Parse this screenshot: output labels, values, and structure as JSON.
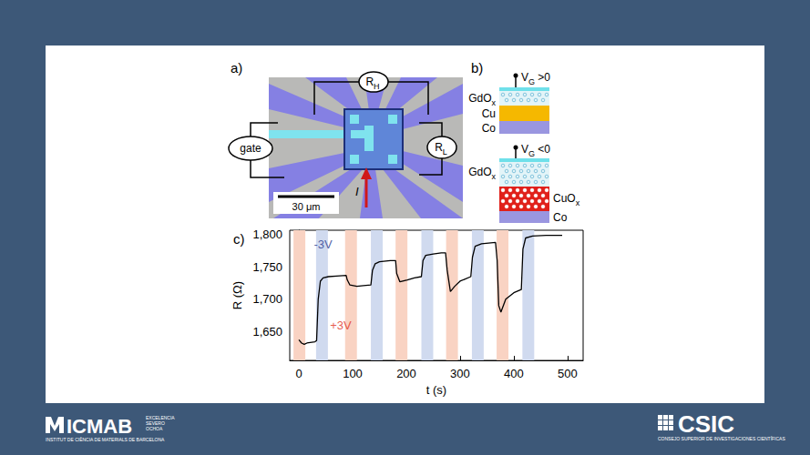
{
  "panels": {
    "a": {
      "letter": "a)",
      "gate": "gate",
      "r_h": [
        {
          "t": "R"
        },
        {
          "t": "H",
          "sub": true
        }
      ],
      "r_l": [
        {
          "t": "R"
        },
        {
          "t": "L",
          "sub": true
        }
      ],
      "scale_bar": "30 μm",
      "current": "I"
    },
    "b": {
      "letter": "b)",
      "top_gate": [
        {
          "t": "V"
        },
        {
          "t": "G",
          "sub": true
        },
        {
          "t": " >0"
        }
      ],
      "top_layers": [
        [
          {
            "t": "GdO"
          },
          {
            "t": "x",
            "sub": true
          }
        ],
        "Cu",
        "Co"
      ],
      "bottom_gate": [
        {
          "t": "V"
        },
        {
          "t": "G",
          "sub": true
        },
        {
          "t": " <0"
        }
      ],
      "bottom_layers": [
        [
          {
            "t": "GdO"
          },
          {
            "t": "x",
            "sub": true
          }
        ],
        [
          {
            "t": "CuO"
          },
          {
            "t": "x",
            "sub": true
          }
        ],
        "Co"
      ]
    },
    "c": {
      "letter": "c)"
    }
  },
  "chart_data": {
    "type": "line",
    "x_label": "t (s)",
    "y_label": "R (Ω)",
    "x": [
      0,
      5,
      10,
      15,
      30,
      33,
      36,
      40,
      45,
      55,
      70,
      88,
      90,
      95,
      108,
      120,
      134,
      137,
      142,
      150,
      170,
      180,
      182,
      188,
      202,
      215,
      228,
      231,
      236,
      250,
      265,
      273,
      276,
      282,
      290,
      300,
      320,
      323,
      328,
      340,
      366,
      369,
      372,
      376,
      385,
      400,
      414,
      417,
      422,
      435,
      460,
      490
    ],
    "values": [
      1637,
      1632,
      1630,
      1632,
      1634,
      1636,
      1700,
      1728,
      1733,
      1735,
      1736,
      1737,
      1730,
      1722,
      1720,
      1721,
      1722,
      1745,
      1755,
      1758,
      1760,
      1760,
      1740,
      1727,
      1730,
      1733,
      1735,
      1760,
      1768,
      1770,
      1772,
      1772,
      1745,
      1712,
      1720,
      1728,
      1735,
      1765,
      1782,
      1786,
      1788,
      1760,
      1690,
      1680,
      1700,
      1710,
      1715,
      1778,
      1795,
      1798,
      1799,
      1799
    ],
    "color": "#000000",
    "xlim": [
      -17,
      529
    ],
    "xticks": [
      0,
      100,
      200,
      300,
      400,
      500
    ],
    "ylim": [
      1605,
      1807
    ],
    "yticks": [
      1650,
      1700,
      1750,
      1800
    ],
    "grid": false,
    "annotations": [
      {
        "text": "-3V",
        "x": 45,
        "y": 1785,
        "color": "#2b3a8f"
      },
      {
        "text": "+3V",
        "x": 78,
        "y": 1660,
        "color": "#e0301e"
      }
    ],
    "bands": [
      {
        "from": -10,
        "to": 12,
        "color": "#f9d3c3"
      },
      {
        "from": 32,
        "to": 54,
        "color": "#d0daef"
      },
      {
        "from": 86,
        "to": 108,
        "color": "#f9d3c3"
      },
      {
        "from": 134,
        "to": 156,
        "color": "#d0daef"
      },
      {
        "from": 180,
        "to": 202,
        "color": "#f9d3c3"
      },
      {
        "from": 228,
        "to": 250,
        "color": "#d0daef"
      },
      {
        "from": 274,
        "to": 296,
        "color": "#f9d3c3"
      },
      {
        "from": 322,
        "to": 344,
        "color": "#d0daef"
      },
      {
        "from": 368,
        "to": 390,
        "color": "#f9d3c3"
      },
      {
        "from": 416,
        "to": 438,
        "color": "#d0daef"
      }
    ]
  },
  "logos": {
    "left": {
      "name": "ICMAB",
      "motto": [
        "EXCELENCIA",
        "SEVERO",
        "OCHOA"
      ],
      "institute": "INSTITUT DE CIÈNCIA DE MATERIALS DE BARCELONA"
    },
    "right": {
      "name": "CSIC",
      "full": "CONSEJO SUPERIOR DE INVESTIGACIONES CIENTÍFICAS"
    }
  }
}
